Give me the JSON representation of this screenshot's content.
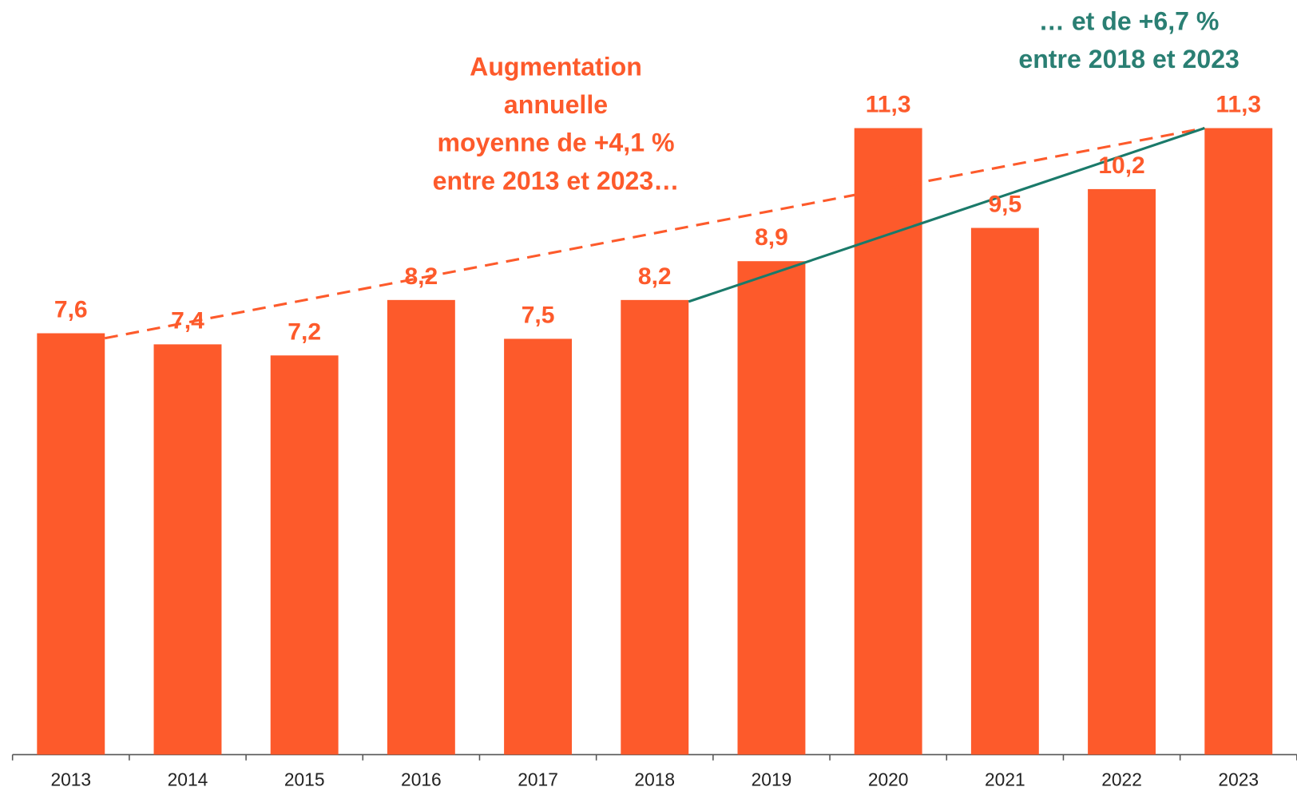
{
  "chart_data": {
    "type": "bar",
    "categories": [
      "2013",
      "2014",
      "2015",
      "2016",
      "2017",
      "2018",
      "2019",
      "2020",
      "2021",
      "2022",
      "2023"
    ],
    "values": [
      7.6,
      7.4,
      7.2,
      8.2,
      7.5,
      8.2,
      8.9,
      11.3,
      9.5,
      10.2,
      11.3
    ],
    "value_labels": [
      "7,6",
      "7,4",
      "7,2",
      "8,2",
      "7,5",
      "8,2",
      "8,9",
      "11,3",
      "9,5",
      "10,2",
      "11,3"
    ],
    "color": "#fd5a2b",
    "annotations": [
      {
        "lines": [
          "Augmentation",
          "annuelle",
          "moyenne de +4,1 %",
          "entre 2013 et 2023…"
        ],
        "color": "#fd5a2b"
      },
      {
        "lines": [
          "… et de +6,7 %",
          "entre 2018 et 2023"
        ],
        "color": "#2a7f73"
      }
    ]
  }
}
